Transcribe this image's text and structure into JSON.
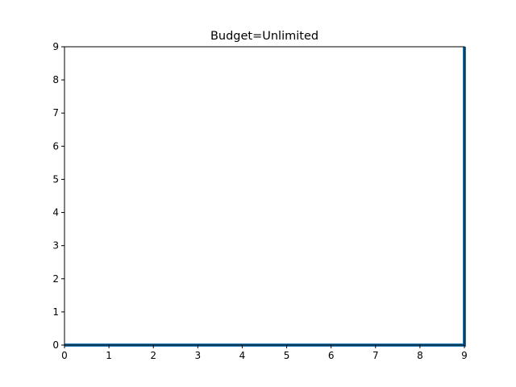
{
  "chart_data": {
    "type": "line",
    "title": "Budget=Unlimited",
    "xlabel": "",
    "ylabel": "",
    "xlim": [
      0,
      9
    ],
    "ylim": [
      0,
      9
    ],
    "xticks": [
      "0",
      "1",
      "2",
      "3",
      "4",
      "5",
      "6",
      "7",
      "8",
      "9"
    ],
    "yticks": [
      "0",
      "1",
      "2",
      "3",
      "4",
      "5",
      "6",
      "7",
      "8",
      "9"
    ],
    "grid": false,
    "series": [
      {
        "x": [
          0,
          9,
          9
        ],
        "y": [
          0,
          0,
          9
        ],
        "color": "#1f77b4"
      }
    ]
  }
}
